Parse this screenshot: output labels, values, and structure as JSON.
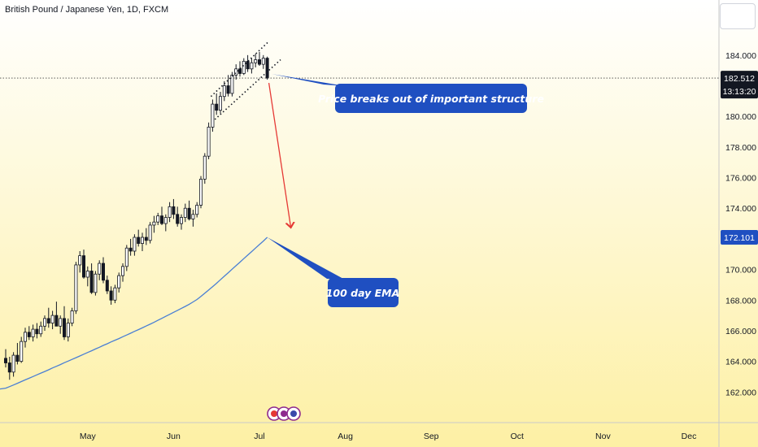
{
  "title": "British Pound / Japanese Yen, 1D, FXCM",
  "colors": {
    "bg_top": "#ffffff",
    "bg_bottom": "#fdf0a4",
    "up": "#ffffff",
    "down": "#131722",
    "ema": "#4a7fd4",
    "arrow": "#e53935",
    "callout": "#1f4fc1",
    "tag_price": "#131722",
    "tag_ema": "#1f4fc1"
  },
  "annotations": {
    "breakout": "Price breaks out of important structure",
    "ema": "100 day EMA"
  },
  "price_tag": {
    "price": "182.512",
    "timer": "13:13:20"
  },
  "ema_tag": "172.101",
  "chart_data": {
    "type": "candlestick",
    "title": "British Pound / Japanese Yen, 1D, FXCM",
    "ylim": [
      160.0,
      187.6
    ],
    "y_ticks": [
      "162.000",
      "164.000",
      "166.000",
      "168.000",
      "170.000",
      "172.000",
      "174.000",
      "176.000",
      "178.000",
      "180.000",
      "182.000",
      "184.000"
    ],
    "x_ticks": [
      "May",
      "Jun",
      "Jul",
      "Aug",
      "Sep",
      "Oct",
      "Nov",
      "Dec"
    ],
    "x_tick_index": [
      21,
      43,
      65,
      87,
      109,
      131,
      153,
      175
    ],
    "grid": false,
    "ohlc": [
      [
        164.2,
        164.8,
        163.6,
        163.9
      ],
      [
        163.9,
        164.3,
        162.8,
        163.3
      ],
      [
        163.3,
        164.6,
        163.0,
        164.4
      ],
      [
        164.4,
        165.2,
        163.8,
        164.0
      ],
      [
        164.0,
        165.6,
        163.9,
        165.3
      ],
      [
        165.3,
        166.2,
        164.9,
        165.9
      ],
      [
        165.9,
        166.3,
        165.4,
        165.6
      ],
      [
        165.6,
        166.4,
        165.3,
        166.1
      ],
      [
        166.1,
        166.5,
        165.5,
        165.8
      ],
      [
        165.8,
        166.6,
        165.6,
        166.3
      ],
      [
        166.3,
        167.0,
        166.0,
        166.8
      ],
      [
        166.8,
        167.5,
        166.2,
        166.5
      ],
      [
        166.5,
        167.3,
        166.1,
        167.0
      ],
      [
        167.0,
        167.9,
        166.4,
        166.3
      ],
      [
        166.3,
        167.0,
        165.8,
        166.8
      ],
      [
        166.8,
        167.6,
        165.4,
        165.6
      ],
      [
        165.6,
        166.8,
        165.3,
        166.5
      ],
      [
        166.5,
        167.5,
        166.3,
        167.3
      ],
      [
        167.3,
        170.5,
        167.1,
        170.3
      ],
      [
        170.3,
        171.2,
        169.8,
        170.9
      ],
      [
        170.9,
        171.3,
        169.4,
        169.5
      ],
      [
        169.5,
        170.2,
        168.9,
        169.9
      ],
      [
        169.9,
        170.4,
        168.4,
        168.5
      ],
      [
        168.5,
        169.9,
        168.3,
        169.7
      ],
      [
        169.7,
        170.6,
        169.3,
        170.4
      ],
      [
        170.4,
        170.8,
        169.1,
        169.3
      ],
      [
        169.3,
        169.6,
        168.4,
        168.6
      ],
      [
        168.6,
        168.9,
        167.7,
        168.0
      ],
      [
        168.0,
        169.0,
        167.8,
        168.8
      ],
      [
        168.8,
        169.8,
        168.5,
        169.6
      ],
      [
        169.6,
        170.4,
        169.2,
        170.2
      ],
      [
        170.2,
        171.6,
        169.9,
        171.4
      ],
      [
        171.4,
        172.0,
        170.9,
        171.2
      ],
      [
        171.2,
        172.3,
        170.9,
        172.1
      ],
      [
        172.1,
        172.6,
        171.5,
        171.7
      ],
      [
        171.7,
        172.4,
        171.2,
        172.1
      ],
      [
        172.1,
        172.7,
        171.6,
        171.9
      ],
      [
        171.9,
        173.1,
        171.7,
        172.9
      ],
      [
        172.9,
        173.5,
        172.4,
        173.1
      ],
      [
        173.1,
        173.7,
        172.9,
        173.5
      ],
      [
        173.5,
        174.1,
        172.9,
        173.0
      ],
      [
        173.0,
        173.6,
        172.5,
        173.4
      ],
      [
        173.4,
        174.4,
        173.1,
        174.1
      ],
      [
        174.1,
        174.6,
        173.3,
        173.6
      ],
      [
        173.6,
        174.1,
        172.8,
        173.0
      ],
      [
        173.0,
        173.6,
        172.6,
        173.4
      ],
      [
        173.4,
        174.3,
        173.1,
        174.0
      ],
      [
        174.0,
        174.5,
        173.2,
        173.3
      ],
      [
        173.3,
        173.9,
        172.8,
        173.6
      ],
      [
        173.6,
        174.4,
        173.4,
        174.2
      ],
      [
        174.2,
        176.1,
        174.0,
        175.9
      ],
      [
        175.9,
        177.6,
        175.6,
        177.4
      ],
      [
        177.4,
        179.6,
        177.2,
        179.3
      ],
      [
        179.3,
        181.1,
        179.0,
        180.8
      ],
      [
        180.8,
        181.5,
        180.1,
        180.4
      ],
      [
        180.4,
        181.6,
        180.2,
        181.3
      ],
      [
        181.3,
        182.3,
        181.0,
        182.0
      ],
      [
        182.0,
        182.7,
        181.3,
        181.5
      ],
      [
        181.5,
        182.9,
        181.3,
        182.7
      ],
      [
        182.7,
        183.4,
        182.4,
        183.1
      ],
      [
        183.1,
        183.6,
        182.6,
        182.8
      ],
      [
        182.8,
        183.8,
        182.7,
        183.6
      ],
      [
        183.6,
        184.0,
        182.9,
        183.1
      ],
      [
        183.1,
        183.8,
        182.8,
        183.5
      ],
      [
        183.5,
        184.1,
        183.2,
        183.7
      ],
      [
        183.7,
        184.2,
        183.3,
        183.4
      ],
      [
        183.4,
        184.0,
        183.1,
        183.8
      ],
      [
        183.8,
        183.9,
        182.4,
        182.5
      ]
    ],
    "ema_series": {
      "name": "",
      "values": [
        162.25,
        162.35,
        162.46,
        162.57,
        162.68,
        162.79,
        162.9,
        163.01,
        163.12,
        163.23,
        163.34,
        163.45,
        163.57,
        163.68,
        163.79,
        163.91,
        164.02,
        164.13,
        164.24,
        164.35,
        164.47,
        164.58,
        164.69,
        164.81,
        164.92,
        165.04,
        165.15,
        165.27,
        165.38,
        165.49,
        165.61,
        165.72,
        165.84,
        165.96,
        166.07,
        166.19,
        166.31,
        166.43,
        166.55,
        166.68,
        166.81,
        166.94,
        167.07,
        167.2,
        167.33,
        167.46,
        167.59,
        167.73,
        167.88,
        168.04,
        168.24,
        168.45,
        168.66,
        168.88,
        169.1,
        169.33,
        169.56,
        169.79,
        170.02,
        170.25,
        170.48,
        170.71,
        170.94,
        171.17,
        171.4,
        171.63,
        171.86,
        172.1
      ]
    }
  }
}
